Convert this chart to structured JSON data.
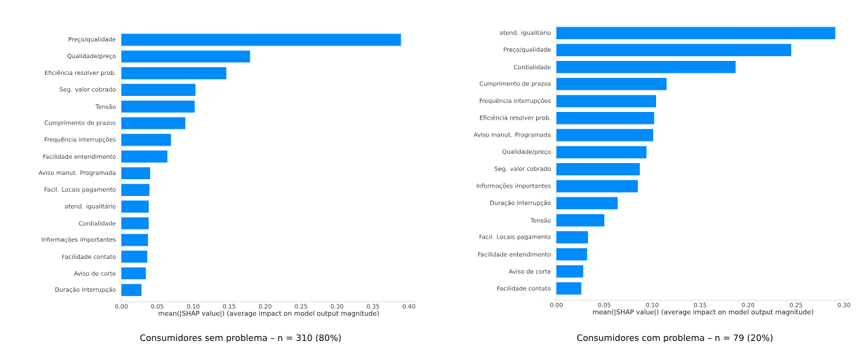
{
  "chart_data": [
    {
      "type": "bar",
      "orientation": "horizontal",
      "color": "#008bfb",
      "categories": [
        "Preço/qualidade",
        "Qualidade/preço",
        "Eficiência resolver prob.",
        "Seg. valor cobrado",
        "Tensão",
        "Cumprimento de prazos",
        "Frequência interrupções",
        "Facilidade entendimento",
        "Aviso manut. Programada",
        "Facil. Locais pagamento",
        "atend. igualitário",
        "Cordialidade",
        "Informações importantes",
        "Facilidade contato",
        "Aviso de corte",
        "Duração interrupção"
      ],
      "values": [
        0.389,
        0.179,
        0.146,
        0.103,
        0.102,
        0.089,
        0.069,
        0.064,
        0.04,
        0.039,
        0.038,
        0.038,
        0.037,
        0.036,
        0.034,
        0.028
      ],
      "xlim": [
        0,
        0.41
      ],
      "xticks": [
        {
          "value": 0,
          "label": "0.00"
        },
        {
          "value": 0.05,
          "label": "0.05"
        },
        {
          "value": 0.1,
          "label": "0.10"
        },
        {
          "value": 0.15,
          "label": "0.15"
        },
        {
          "value": 0.2,
          "label": "0.20"
        },
        {
          "value": 0.25,
          "label": "0.25"
        },
        {
          "value": 0.3,
          "label": "0.30"
        },
        {
          "value": 0.35,
          "label": "0.35"
        },
        {
          "value": 0.4,
          "label": "0.40"
        }
      ],
      "xlabel": "mean(|SHAP value|) (average impact on model output magnitude)",
      "annotations": [
        "Consumidores sem problema – n = 310 (80%)"
      ]
    },
    {
      "type": "bar",
      "orientation": "horizontal",
      "color": "#008bfb",
      "categories": [
        "atend. igualitário",
        "Preço/qualidade",
        "Cordialidade",
        "Cumprimento de prazos",
        "Frequência interrupções",
        "Eficiência resolver prob.",
        "Aviso manut. Programada",
        "Qualidade/preço",
        "Seg. valor cobrado",
        "Informações importantes",
        "Duração interrupção",
        "Tensão",
        "Facil. Locais pagamento",
        "Facilidade entendimento",
        "Aviso de corte",
        "Facilidade contato"
      ],
      "values": [
        0.291,
        0.245,
        0.187,
        0.115,
        0.104,
        0.102,
        0.101,
        0.094,
        0.087,
        0.085,
        0.064,
        0.05,
        0.033,
        0.032,
        0.028,
        0.026
      ],
      "xlim": [
        0,
        0.306
      ],
      "xticks": [
        {
          "value": 0,
          "label": "0.00"
        },
        {
          "value": 0.05,
          "label": "0.05"
        },
        {
          "value": 0.1,
          "label": "0.10"
        },
        {
          "value": 0.15,
          "label": "0.15"
        },
        {
          "value": 0.2,
          "label": "0.20"
        },
        {
          "value": 0.25,
          "label": "0.25"
        },
        {
          "value": 0.3,
          "label": "0.30"
        }
      ],
      "xlabel": "mean(|SHAP value|) (average impact on model output magnitude)",
      "annotations": [
        "Consumidores com problema – n = 79 (20%)"
      ]
    }
  ]
}
